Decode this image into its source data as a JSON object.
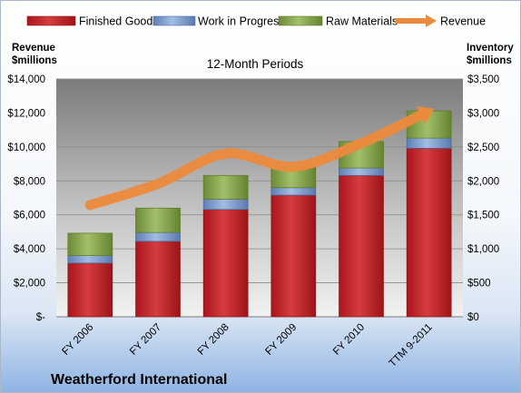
{
  "chart_data": {
    "type": "bar",
    "subtype": "stacked-bar-with-line",
    "title": "12-Month Periods",
    "company": "Weatherford International",
    "categories": [
      "FY 2006",
      "FY 2007",
      "FY 2008",
      "FY 2009",
      "FY 2010",
      "TTM 9-2011"
    ],
    "series": [
      {
        "name": "Finished Goods",
        "axis": "right",
        "color": "#c0282b",
        "values": [
          790,
          1110,
          1580,
          1790,
          2080,
          2480
        ]
      },
      {
        "name": "Work in Progress",
        "axis": "right",
        "color": "#7d9ccf",
        "values": [
          110,
          130,
          150,
          110,
          110,
          150
        ]
      },
      {
        "name": "Raw Materials",
        "axis": "right",
        "color": "#86a64f",
        "values": [
          330,
          360,
          350,
          310,
          390,
          400
        ]
      },
      {
        "name": "Revenue",
        "axis": "left",
        "type": "line",
        "color": "#ec8a3c",
        "values": [
          6580,
          7830,
          9600,
          8830,
          10220,
          12100
        ]
      }
    ],
    "left_axis": {
      "label_line1": "Revenue",
      "label_line2": "$millions",
      "ylim": [
        0,
        14000
      ],
      "ticks": [
        {
          "value": 0,
          "label": "$-"
        },
        {
          "value": 2000,
          "label": "$2,000"
        },
        {
          "value": 4000,
          "label": "$4,000"
        },
        {
          "value": 6000,
          "label": "$6,000"
        },
        {
          "value": 8000,
          "label": "$8,000"
        },
        {
          "value": 10000,
          "label": "$10,000"
        },
        {
          "value": 12000,
          "label": "$12,000"
        },
        {
          "value": 14000,
          "label": "$14,000"
        }
      ]
    },
    "right_axis": {
      "label_line1": "Inventory",
      "label_line2": "$millions",
      "ylim": [
        0,
        3500
      ],
      "ticks": [
        {
          "value": 0,
          "label": "$0"
        },
        {
          "value": 500,
          "label": "$500"
        },
        {
          "value": 1000,
          "label": "$1,000"
        },
        {
          "value": 1500,
          "label": "$1,500"
        },
        {
          "value": 2000,
          "label": "$2,000"
        },
        {
          "value": 2500,
          "label": "$2,500"
        },
        {
          "value": 3000,
          "label": "$3,000"
        },
        {
          "value": 3500,
          "label": "$3,500"
        }
      ]
    },
    "grid": true,
    "legend_position": "top"
  }
}
